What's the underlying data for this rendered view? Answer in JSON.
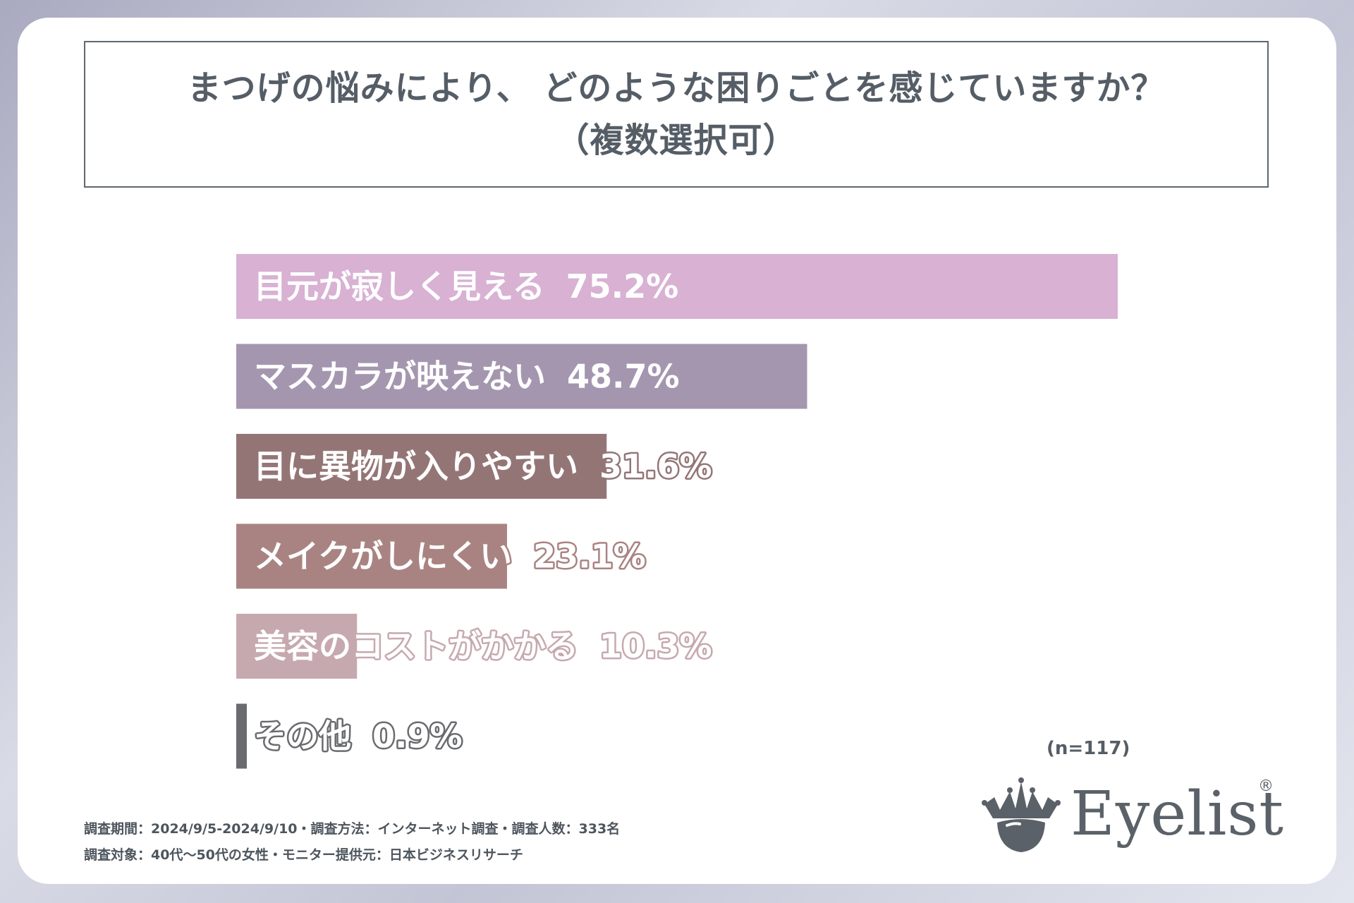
{
  "title": {
    "line1": "まつげの悩みにより、 どのような困りごとを感じていますか？",
    "line2": "（複数選択可）"
  },
  "chart_data": {
    "type": "bar",
    "orientation": "horizontal",
    "title": "まつげの悩みにより、 どのような困りごとを感じていますか？（複数選択可）",
    "categories": [
      "目元が寂しく見える",
      "マスカラが映えない",
      "目に異物が入りやすい",
      "メイクがしにくい",
      "美容のコストがかかる",
      "その他"
    ],
    "values": [
      75.2,
      48.7,
      31.6,
      23.1,
      10.3,
      0.9
    ],
    "value_labels": [
      "75.2%",
      "48.7%",
      "31.6%",
      "23.1%",
      "10.3%",
      "0.9%"
    ],
    "colors": [
      "#d8b1d3",
      "#a596b0",
      "#947576",
      "#a98382",
      "#c6a9ae",
      "#6a6b6e"
    ],
    "label_strokes": [
      "#d8b1d3",
      "#a596b0",
      "#947576",
      "#a98382",
      "#c6a9ae",
      "#6a6b6e"
    ],
    "xlim": [
      0,
      75.2
    ],
    "unit": "%",
    "grid": false,
    "legend": "none"
  },
  "sample_note": "(n=117)",
  "footer": {
    "line1": "調査期間：2024/9/5-2024/9/10・調査方法：インターネット調査・調査人数：333名",
    "line2": "調査対象：40代～50代の女性・モニター提供元：日本ビジネスリサーチ"
  },
  "logo": {
    "text": "Eyelist",
    "registered": "®",
    "icon": "crown-eye-icon"
  }
}
